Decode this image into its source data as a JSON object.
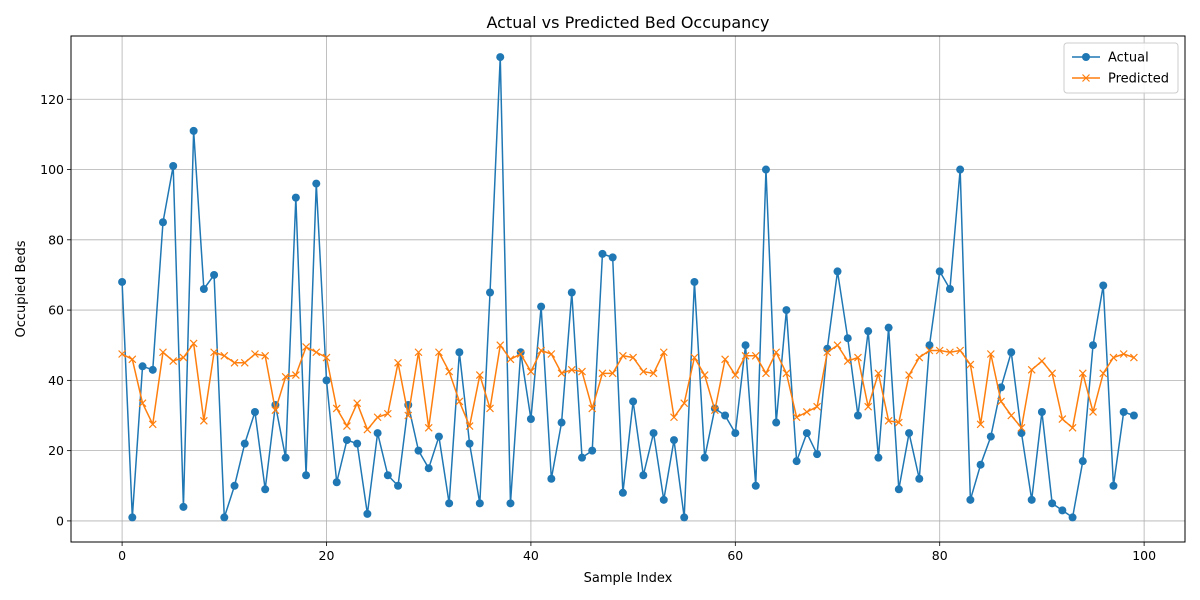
{
  "chart_data": {
    "type": "line",
    "title": "Actual vs Predicted Bed Occupancy",
    "xlabel": "Sample Index",
    "ylabel": "Occupied Beds",
    "xlim": [
      -5,
      104
    ],
    "ylim": [
      -6,
      138
    ],
    "xticks": [
      0,
      20,
      40,
      60,
      80,
      100
    ],
    "yticks": [
      0,
      20,
      40,
      60,
      80,
      100,
      120
    ],
    "grid": true,
    "legend_position": "top-right",
    "series": [
      {
        "name": "Actual",
        "color": "#1f77b4",
        "marker": "circle",
        "values": [
          68,
          1,
          44,
          43,
          85,
          101,
          4,
          111,
          66,
          70,
          1,
          10,
          22,
          31,
          9,
          33,
          18,
          92,
          13,
          96,
          40,
          11,
          23,
          22,
          2,
          25,
          13,
          10,
          33,
          20,
          15,
          24,
          5,
          48,
          22,
          5,
          65,
          132,
          5,
          48,
          29,
          61,
          12,
          28,
          65,
          18,
          20,
          76,
          75,
          8,
          34,
          13,
          25,
          6,
          23,
          1,
          68,
          18,
          32,
          30,
          25,
          50,
          10,
          100,
          28,
          60,
          17,
          25,
          19,
          49,
          71,
          52,
          30,
          54,
          18,
          55,
          9,
          25,
          12,
          50,
          71,
          66,
          100,
          6,
          16,
          24,
          38,
          48,
          25,
          6,
          31,
          5,
          3,
          1,
          17,
          50,
          67,
          10,
          31,
          30
        ]
      },
      {
        "name": "Predicted",
        "color": "#ff7f0e",
        "marker": "x",
        "values": [
          47.5,
          46,
          33.5,
          27.5,
          48,
          45.5,
          46.5,
          50.5,
          28.5,
          48,
          47,
          45,
          45,
          47.5,
          47,
          31.5,
          41,
          41.5,
          49.5,
          48,
          46.5,
          32,
          27,
          33.5,
          26,
          29.5,
          30.5,
          45,
          30,
          48,
          26.5,
          48,
          42.5,
          34,
          27,
          41.5,
          32,
          50,
          46,
          47.5,
          42.5,
          48.5,
          47.5,
          42,
          43,
          42.5,
          32,
          42,
          42,
          47,
          46.5,
          42.5,
          42,
          48,
          29.5,
          33.5,
          46.5,
          41.5,
          31.5,
          46,
          41.5,
          47,
          47,
          42,
          48,
          42,
          29.5,
          31,
          32.5,
          48,
          50,
          45.5,
          46.5,
          32.5,
          42,
          28.5,
          28,
          41.5,
          46.5,
          48.5,
          48.5,
          48,
          48.5,
          44.5,
          27.5,
          47.5,
          34,
          30,
          26.5,
          43,
          45.5,
          42,
          29,
          26.5,
          42,
          31,
          42,
          46.5,
          47.5,
          46.5
        ]
      }
    ]
  }
}
